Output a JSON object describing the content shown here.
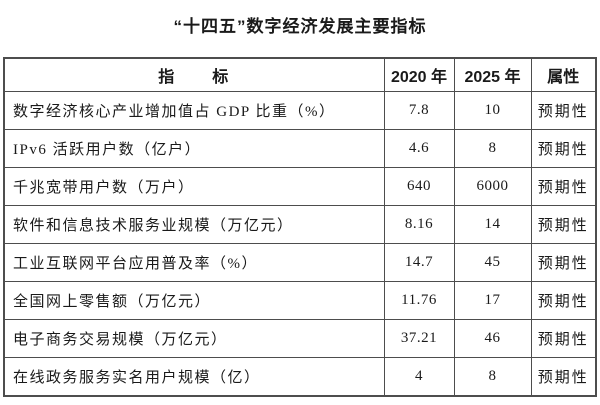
{
  "title": "“十四五”数字经济发展主要指标",
  "table": {
    "headers": {
      "indicator": "指　　标",
      "y2020": "2020 年",
      "y2025": "2025 年",
      "attr": "属性"
    },
    "rows": [
      {
        "indicator": "数字经济核心产业增加值占 GDP 比重（%）",
        "y2020": "7.8",
        "y2025": "10",
        "attr": "预期性"
      },
      {
        "indicator": "IPv6 活跃用户数（亿户）",
        "y2020": "4.6",
        "y2025": "8",
        "attr": "预期性"
      },
      {
        "indicator": "千兆宽带用户数（万户）",
        "y2020": "640",
        "y2025": "6000",
        "attr": "预期性"
      },
      {
        "indicator": "软件和信息技术服务业规模（万亿元）",
        "y2020": "8.16",
        "y2025": "14",
        "attr": "预期性"
      },
      {
        "indicator": "工业互联网平台应用普及率（%）",
        "y2020": "14.7",
        "y2025": "45",
        "attr": "预期性"
      },
      {
        "indicator": "全国网上零售额（万亿元）",
        "y2020": "11.76",
        "y2025": "17",
        "attr": "预期性"
      },
      {
        "indicator": "电子商务交易规模（万亿元）",
        "y2020": "37.21",
        "y2025": "46",
        "attr": "预期性"
      },
      {
        "indicator": "在线政务服务实名用户规模（亿）",
        "y2020": "4",
        "y2025": "8",
        "attr": "预期性"
      }
    ]
  }
}
